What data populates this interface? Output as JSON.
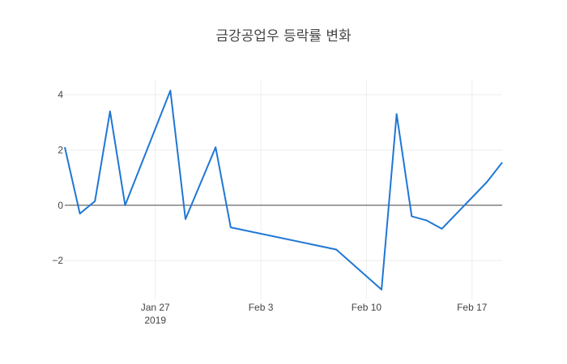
{
  "chart_data": {
    "type": "line",
    "title": "금강공업우 등락률 변화",
    "xlabel": "",
    "ylabel": "",
    "xlim": [
      "2019-01-21",
      "2019-02-19"
    ],
    "ylim": [
      -3.4,
      4.5
    ],
    "grid": true,
    "x_ticks": [
      {
        "value": "2019-01-27",
        "label": "Jan 27",
        "sublabel": "2019"
      },
      {
        "value": "2019-02-03",
        "label": "Feb 3",
        "sublabel": ""
      },
      {
        "value": "2019-02-10",
        "label": "Feb 10",
        "sublabel": ""
      },
      {
        "value": "2019-02-17",
        "label": "Feb 17",
        "sublabel": ""
      }
    ],
    "y_ticks": [
      {
        "value": 4,
        "label": "4"
      },
      {
        "value": 2,
        "label": "2"
      },
      {
        "value": 0,
        "label": "0"
      },
      {
        "value": -2,
        "label": "−2"
      }
    ],
    "series": [
      {
        "name": "",
        "color": "#1f77d4",
        "points": [
          {
            "x": "2019-01-21",
            "y": 2.1
          },
          {
            "x": "2019-01-22",
            "y": -0.3
          },
          {
            "x": "2019-01-23",
            "y": 0.15
          },
          {
            "x": "2019-01-24",
            "y": 3.4
          },
          {
            "x": "2019-01-25",
            "y": 0.0
          },
          {
            "x": "2019-01-28",
            "y": 4.15
          },
          {
            "x": "2019-01-29",
            "y": -0.5
          },
          {
            "x": "2019-01-31",
            "y": 2.1
          },
          {
            "x": "2019-02-01",
            "y": -0.8
          },
          {
            "x": "2019-02-08",
            "y": -1.6
          },
          {
            "x": "2019-02-11",
            "y": -3.05
          },
          {
            "x": "2019-02-12",
            "y": 3.3
          },
          {
            "x": "2019-02-13",
            "y": -0.4
          },
          {
            "x": "2019-02-14",
            "y": -0.55
          },
          {
            "x": "2019-02-15",
            "y": -0.85
          },
          {
            "x": "2019-02-18",
            "y": 0.85
          },
          {
            "x": "2019-02-19",
            "y": 1.55
          }
        ]
      }
    ]
  }
}
